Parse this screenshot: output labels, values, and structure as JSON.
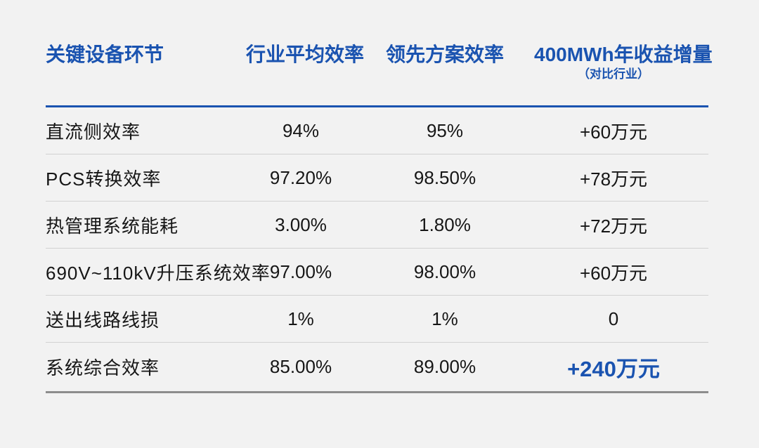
{
  "page": {
    "background_color": "#f2f2f2",
    "accent_color": "#1a53b0",
    "text_color": "#161616"
  },
  "table": {
    "columns": [
      {
        "label": "关键设备环节"
      },
      {
        "label": "行业平均效率"
      },
      {
        "label": "领先方案效率"
      },
      {
        "label": "400MWh年收益增量",
        "sublabel": "（对比行业）"
      }
    ],
    "rows": [
      {
        "label": "直流侧效率",
        "industry_avg": "94%",
        "leading": "95%",
        "gain": "+60万元"
      },
      {
        "label": "PCS转换效率",
        "industry_avg": "97.20%",
        "leading": "98.50%",
        "gain": "+78万元"
      },
      {
        "label": "热管理系统能耗",
        "industry_avg": "3.00%",
        "leading": "1.80%",
        "gain": "+72万元"
      },
      {
        "label": "690V~110kV升压系统效率",
        "industry_avg": "97.00%",
        "leading": "98.00%",
        "gain": "+60万元"
      },
      {
        "label": "送出线路线损",
        "industry_avg": "1%",
        "leading": "1%",
        "gain": "0"
      },
      {
        "label": "系统综合效率",
        "industry_avg": "85.00%",
        "leading": "89.00%",
        "gain": "+240万元",
        "highlight": true
      }
    ]
  }
}
